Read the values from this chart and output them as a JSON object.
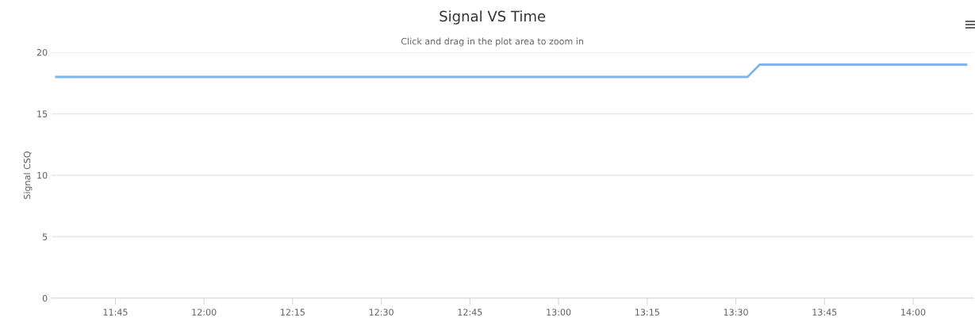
{
  "chart_data": {
    "type": "line",
    "title": "Signal VS Time",
    "subtitle": "Click and drag in the plot area to zoom in",
    "ylabel": "Signal CSQ",
    "x": [
      11.583,
      13.533,
      13.567,
      14.15
    ],
    "series": [
      {
        "color": "#7cb5ec",
        "values": [
          18,
          18,
          19,
          19
        ]
      }
    ],
    "xlim": [
      11.57,
      14.17
    ],
    "xticks": [
      {
        "value": 11.75,
        "label": "11:45"
      },
      {
        "value": 12.0,
        "label": "12:00"
      },
      {
        "value": 12.25,
        "label": "12:15"
      },
      {
        "value": 12.5,
        "label": "12:30"
      },
      {
        "value": 12.75,
        "label": "12:45"
      },
      {
        "value": 13.0,
        "label": "13:00"
      },
      {
        "value": 13.25,
        "label": "13:15"
      },
      {
        "value": 13.5,
        "label": "13:30"
      },
      {
        "value": 13.75,
        "label": "13:45"
      },
      {
        "value": 14.0,
        "label": "14:00"
      }
    ],
    "ylim": [
      0,
      20
    ],
    "yticks": [
      0,
      5,
      10,
      15,
      20
    ],
    "grid": "y",
    "legend": false,
    "line_style": "solid"
  }
}
